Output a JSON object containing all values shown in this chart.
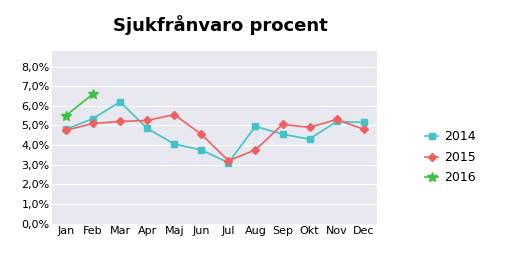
{
  "title": "Sjukfrånvaro procent",
  "months": [
    "Jan",
    "Feb",
    "Mar",
    "Apr",
    "Maj",
    "Jun",
    "Jul",
    "Aug",
    "Sep",
    "Okt",
    "Nov",
    "Dec"
  ],
  "series_2014": [
    4.8,
    5.35,
    6.2,
    4.85,
    4.05,
    3.75,
    3.1,
    4.95,
    4.55,
    4.3,
    5.2,
    5.15
  ],
  "series_2015": [
    4.75,
    5.1,
    5.2,
    5.25,
    5.55,
    4.55,
    3.2,
    3.75,
    5.05,
    4.9,
    5.3,
    4.8
  ],
  "series_2016": [
    5.5,
    6.6,
    null,
    null,
    null,
    null,
    null,
    null,
    null,
    null,
    null,
    null
  ],
  "color_2014": "#40c4c8",
  "color_2015": "#f06060",
  "color_2016": "#40c040",
  "ylim_min": 0.0,
  "ylim_max": 0.088,
  "ytick_vals": [
    0.0,
    0.01,
    0.02,
    0.03,
    0.04,
    0.05,
    0.06,
    0.07,
    0.08
  ],
  "ytick_labels": [
    "0,0%",
    "1,0%",
    "2,0%",
    "3,0%",
    "4,0%",
    "5,0%",
    "6,0%",
    "7,0%",
    "8,0%"
  ],
  "plot_bg": "#e8e8f0",
  "fig_bg": "#ffffff",
  "title_fontsize": 13,
  "axis_fontsize": 8,
  "legend_fontsize": 9,
  "linewidth": 1.2,
  "markersize_sq": 4,
  "markersize_d": 4,
  "markersize_star": 7
}
